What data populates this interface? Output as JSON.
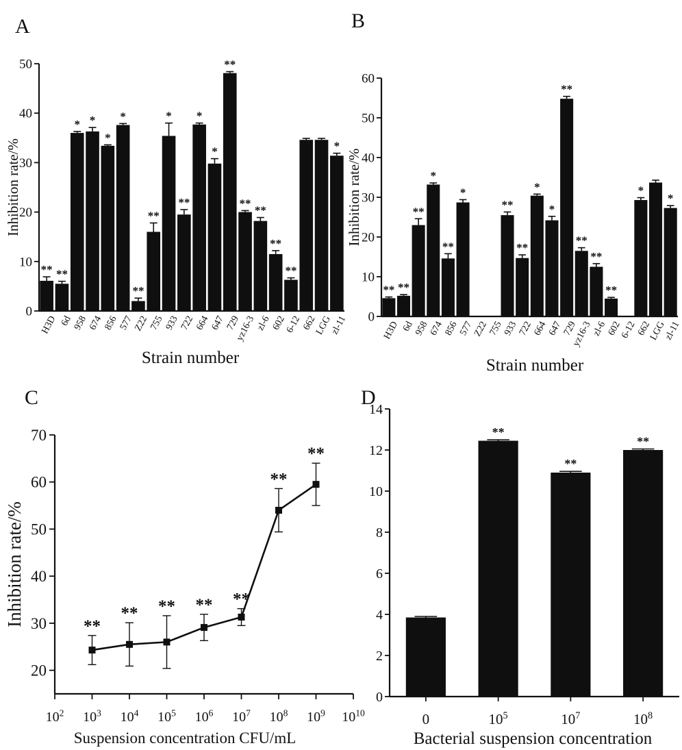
{
  "chart_data": [
    {
      "panel": "A",
      "type": "bar",
      "xlabel": "Strain number",
      "ylabel": "Inhibition rate/%",
      "ylim": [
        0,
        50
      ],
      "yticks": [
        0,
        10,
        20,
        30,
        40,
        50
      ],
      "categories": [
        "H3D",
        "6d",
        "958",
        "674",
        "856",
        "577",
        "Z22",
        "755",
        "933",
        "722",
        "664",
        "647",
        "729",
        "yz16-3",
        "zl-6",
        "602",
        "6-12",
        "662",
        "LGG",
        "zl-11"
      ],
      "values": [
        6.1,
        5.5,
        36.0,
        36.3,
        33.4,
        37.6,
        2.0,
        16.0,
        35.4,
        19.5,
        37.7,
        29.8,
        48.1,
        20.0,
        18.2,
        11.5,
        6.3,
        34.6,
        34.6,
        31.4
      ],
      "errors": [
        0.8,
        0.5,
        0.3,
        0.8,
        0.2,
        0.3,
        0.6,
        1.8,
        2.6,
        1.0,
        0.3,
        1.0,
        0.3,
        0.3,
        0.7,
        0.7,
        0.4,
        0.3,
        0.3,
        0.5
      ],
      "significance": [
        "**",
        "**",
        "*",
        "*",
        "*",
        "*",
        "**",
        "**",
        "*",
        "**",
        "*",
        "*",
        "**",
        "**",
        "**",
        "**",
        "**",
        "",
        "",
        "*"
      ]
    },
    {
      "panel": "B",
      "type": "bar",
      "xlabel": "Strain number",
      "ylabel": "Inhibition rate/%",
      "ylim": [
        0,
        60
      ],
      "yticks": [
        0,
        10,
        20,
        30,
        40,
        50,
        60
      ],
      "categories": [
        "H3D",
        "6d",
        "958",
        "674",
        "856",
        "577",
        "Z22",
        "755",
        "933",
        "722",
        "664",
        "647",
        "729",
        "yz16-3",
        "zl-6",
        "602",
        "6-12",
        "662",
        "LGG",
        "zl-11"
      ],
      "values": [
        4.6,
        5.2,
        23.0,
        33.2,
        14.6,
        28.7,
        0,
        0,
        25.5,
        14.7,
        30.4,
        24.2,
        54.8,
        16.5,
        12.5,
        4.5,
        0,
        29.3,
        33.7,
        27.3
      ],
      "errors": [
        0.3,
        0.3,
        1.6,
        0.4,
        1.2,
        0.7,
        0,
        0,
        0.8,
        0.8,
        0.4,
        1.0,
        0.6,
        0.8,
        0.8,
        0.3,
        0,
        0.6,
        0.6,
        0.6
      ],
      "significance": [
        "**",
        "**",
        "**",
        "*",
        "**",
        "*",
        "",
        "",
        "**",
        "**",
        "*",
        "*",
        "**",
        "**",
        "**",
        "**",
        "",
        "*",
        "",
        "*"
      ]
    },
    {
      "panel": "C",
      "type": "line",
      "xlabel": "Suspension concentration CFU/mL",
      "ylabel": "Inhibition rate/%",
      "xscale": "log",
      "xlim_exp": [
        2,
        10
      ],
      "xtick_base": "10",
      "xtick_exps": [
        "2",
        "3",
        "4",
        "5",
        "6",
        "7",
        "8",
        "9",
        "10"
      ],
      "ylim": [
        15,
        70
      ],
      "yticks": [
        20,
        30,
        40,
        50,
        60,
        70
      ],
      "x_exp": [
        3,
        4,
        5,
        6,
        7,
        8,
        9
      ],
      "values": [
        24.3,
        25.5,
        26.0,
        29.1,
        31.3,
        54.0,
        59.5
      ],
      "errors": [
        3.1,
        4.6,
        5.6,
        2.8,
        1.8,
        4.6,
        4.5
      ],
      "significance": [
        "**",
        "**",
        "**",
        "**",
        "**",
        "**",
        "**"
      ]
    },
    {
      "panel": "D",
      "type": "bar",
      "xlabel": "Bacterial suspension concentration",
      "ylabel": "",
      "ylim": [
        0,
        14
      ],
      "yticks": [
        0,
        2,
        4,
        6,
        8,
        10,
        12,
        14
      ],
      "categories": [
        "0",
        "10^5",
        "10^7",
        "10^8"
      ],
      "category_base": [
        "0",
        "10",
        "10",
        "10"
      ],
      "category_exp": [
        "",
        "5",
        "7",
        "8"
      ],
      "values": [
        3.85,
        12.45,
        10.9,
        12.0
      ],
      "errors": [
        0.05,
        0.05,
        0.06,
        0.05
      ],
      "significance": [
        "",
        "**",
        "**",
        "**"
      ]
    }
  ],
  "panel_labels": [
    "A",
    "B",
    "C",
    "D"
  ],
  "colors": {
    "bar": "#0f0f0f",
    "axis": "#111111"
  }
}
